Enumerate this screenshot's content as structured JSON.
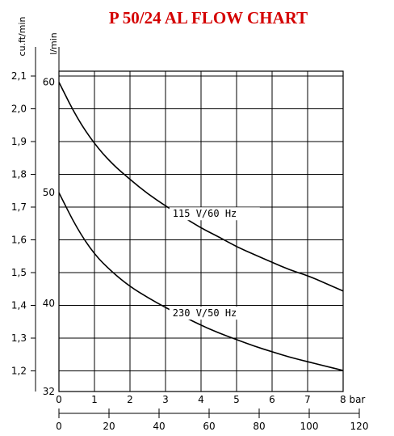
{
  "chart_data": {
    "type": "line",
    "title": "P 50/24 AL FLOW CHART",
    "x_unit": "bar",
    "x_ticks": [
      0,
      1,
      2,
      3,
      4,
      5,
      6,
      7,
      8
    ],
    "x_tick_labels": [
      "0",
      "1",
      "2",
      "3",
      "4",
      "5",
      "6",
      "7",
      "8 bar"
    ],
    "x2_ticks": [
      "0",
      "20",
      "40",
      "60",
      "80",
      "100",
      "120"
    ],
    "y_left_label": "cu.ft/min",
    "y_left_ticks": [
      "2,1",
      "2,0",
      "1,9",
      "1,8",
      "1,7",
      "1,6",
      "1,5",
      "1,4",
      "1,3",
      "1,2"
    ],
    "y_inner_label": "l/min",
    "y_inner_ticks": [
      "60",
      "50",
      "40",
      "32"
    ],
    "xlim": [
      0,
      8
    ],
    "ylim": [
      32,
      61
    ],
    "grid": true,
    "series": [
      {
        "name": "115 V/60 Hz",
        "x": [
          0,
          0.5,
          1,
          1.5,
          2,
          2.5,
          3,
          3.5,
          4,
          4.5,
          5,
          5.5,
          6,
          6.5,
          7,
          7.5,
          8
        ],
        "y": [
          60,
          56.8,
          54.4,
          52.6,
          51.2,
          49.9,
          48.8,
          47.8,
          46.8,
          46.0,
          45.1,
          44.4,
          43.7,
          43.0,
          42.5,
          41.8,
          41.1
        ]
      },
      {
        "name": "230 V/50 Hz",
        "x": [
          0,
          0.5,
          1,
          1.5,
          2,
          2.5,
          3,
          3.5,
          4,
          4.5,
          5,
          5.5,
          6,
          6.5,
          7,
          7.5,
          8
        ],
        "y": [
          50,
          46.8,
          44.4,
          42.8,
          41.5,
          40.5,
          39.6,
          38.8,
          38.0,
          37.3,
          36.7,
          36.1,
          35.6,
          35.1,
          34.7,
          34.3,
          33.9
        ]
      }
    ]
  }
}
